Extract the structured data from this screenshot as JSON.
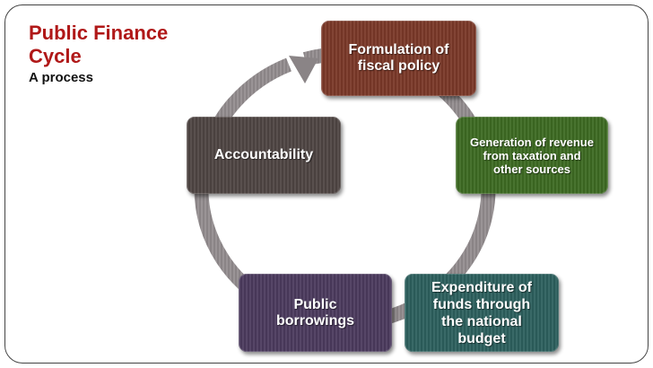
{
  "slide": {
    "title": "Public Finance\nCycle",
    "subtitle": "A process"
  },
  "diagram": {
    "ring_color": "#8a8486",
    "steps": [
      {
        "label": "Formulation of\nfiscal policy",
        "color": "#7a3828"
      },
      {
        "label": "Generation of revenue\nfrom taxation and\nother sources",
        "color": "#3d6a22"
      },
      {
        "label": "Expenditure of\nfunds through\nthe national\nbudget",
        "color": "#2d605e"
      },
      {
        "label": "Public\nborrowings",
        "color": "#4b3a5e"
      },
      {
        "label": "Accountability",
        "color": "#4f4543"
      }
    ]
  }
}
